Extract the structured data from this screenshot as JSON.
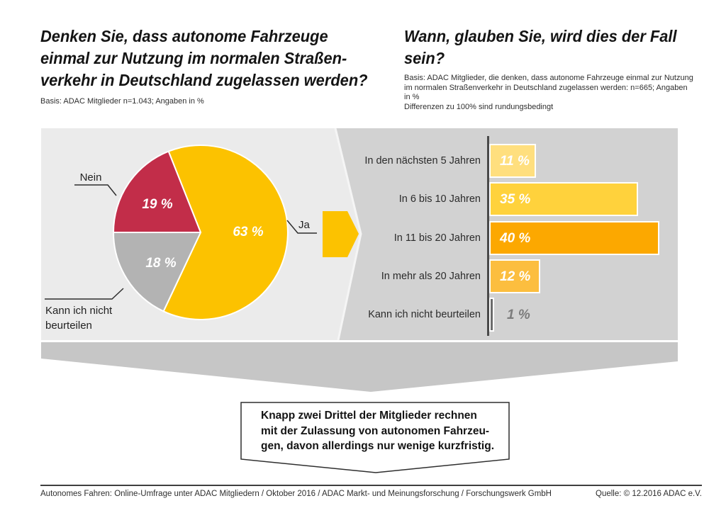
{
  "header": {
    "left_question_lines": [
      "Denken Sie, dass autonome Fahrzeuge",
      "einmal zur Nutzung im normalen Straßen-",
      "verkehr in Deutschland zugelassen werden?"
    ],
    "left_basis": "Basis: ADAC Mitglieder n=1.043; Angaben in %",
    "right_question_lines": [
      "Wann, glauben Sie, wird dies der Fall",
      "sein?"
    ],
    "right_basis_lines": [
      "Basis: ADAC Mitglieder, die denken, dass autonome Fahrzeuge einmal zur Nutzung",
      "im normalen Straßenverkehr in Deutschland zugelassen werden: n=665; Angaben",
      "in %",
      "Differenzen zu 100% sind rundungsbedingt"
    ]
  },
  "chart_data": [
    {
      "type": "pie",
      "question": "Denken Sie, dass autonome Fahrzeuge einmal zur Nutzung im normalen Straßenverkehr in Deutschland zugelassen werden?",
      "unit": "%",
      "slices": [
        {
          "label": "Ja",
          "value": 63,
          "display": "63 %",
          "color": "#FCC200"
        },
        {
          "label": "Nein",
          "value": 19,
          "display": "19 %",
          "color": "#C22D49"
        },
        {
          "label": "Kann ich nicht beurteilen",
          "value": 18,
          "display": "18 %",
          "color": "#B3B3B3"
        }
      ]
    },
    {
      "type": "bar",
      "orientation": "horizontal",
      "question": "Wann, glauben Sie, wird dies der Fall sein?",
      "unit": "%",
      "categories": [
        "In den nächsten 5 Jahren",
        "In 6 bis 10 Jahren",
        "In 11 bis 20 Jahren",
        "In mehr als 20 Jahren",
        "Kann ich nicht beurteilen"
      ],
      "values": [
        11,
        35,
        40,
        12,
        1
      ],
      "value_labels": [
        "11 %",
        "35 %",
        "40 %",
        "12 %",
        "1 %"
      ],
      "bar_colors": [
        "#FFDF7E",
        "#FFD23C",
        "#FCA800",
        "#FCBE3F",
        "#6B6B6B"
      ],
      "xlim": [
        0,
        40
      ],
      "grid": false,
      "legend": false
    }
  ],
  "callout": {
    "lines": [
      "Knapp zwei Drittel der Mitglieder rechnen",
      "mit der Zulassung von autonomen Fahrzeu-",
      "gen, davon allerdings nur wenige kurzfristig."
    ]
  },
  "footer": {
    "left": "Autonomes Fahren: Online-Umfrage unter ADAC Mitgliedern / Oktober 2016 / ADAC Markt- und Meinungsforschung / Forschungswerk GmbH",
    "right": "Quelle: © 12.2016 ADAC e.V."
  },
  "colors": {
    "accent_yellow": "#FCC200",
    "panel_light": "#EBEBEB",
    "panel_dark": "#D2D2D2",
    "chevron_band": "#C6C6C6",
    "axis": "#4A4A4A"
  }
}
